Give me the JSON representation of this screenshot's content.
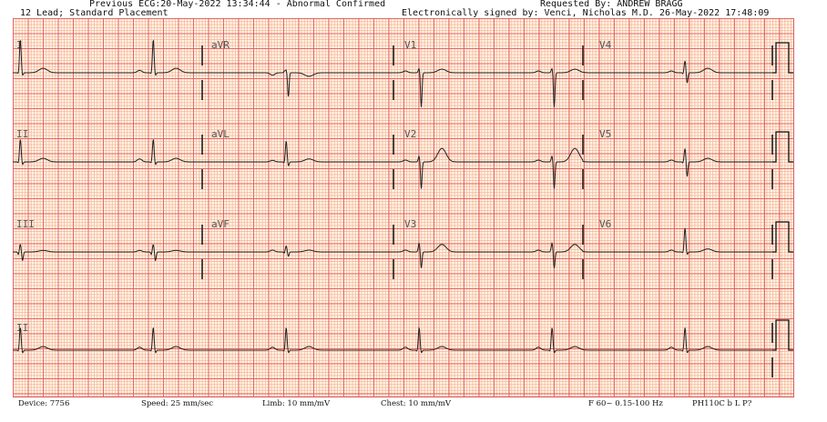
{
  "header": {
    "previous": "Previous ECG:20-May-2022 13:34:44 - Abnormal Confirmed",
    "requested": "Requested By: ANDREW  BRAGG",
    "lead_info": "12 Lead; Standard Placement",
    "signed": "Electronically signed by: Venci, Nicholas M.D. 26-May-2022 17:48:09"
  },
  "footer": {
    "device": "Device: 7756",
    "speed": "Speed: 25 mm/sec",
    "limb": "Limb: 10 mm/mV",
    "chest": "Chest: 10 mm/mV",
    "filter": "F 60~ 0.15-100 Hz",
    "model": "PH110C b L P?"
  },
  "colors": {
    "grid_major": "#de5a5a",
    "grid_minor": "#f6b28c",
    "trace": "#222222"
  },
  "chart_data": {
    "type": "line",
    "speed_mm_per_s": 25,
    "gain_mm_per_mv": 10,
    "duration_s": 10,
    "rr_interval_s": 1.75,
    "first_beat_s": 0.1,
    "rows": [
      [
        "I",
        "aVR",
        "V1",
        "V4"
      ],
      [
        "II",
        "aVL",
        "V2",
        "V5"
      ],
      [
        "III",
        "aVF",
        "V3",
        "V6"
      ],
      [
        "II"
      ]
    ],
    "leads": {
      "I": {
        "p": 0.08,
        "q": -0.05,
        "r": 1.1,
        "s": -0.1,
        "t": 0.15
      },
      "II": {
        "p": 0.1,
        "q": -0.05,
        "r": 0.75,
        "s": -0.1,
        "t": 0.12
      },
      "III": {
        "p": 0.05,
        "q": -0.1,
        "r": 0.25,
        "s": -0.3,
        "t": 0.05
      },
      "aVR": {
        "p": -0.08,
        "q": 0.05,
        "r": 0.1,
        "s": -0.8,
        "t": -0.12
      },
      "aVL": {
        "p": 0.05,
        "q": -0.05,
        "r": 0.7,
        "s": -0.15,
        "t": 0.1
      },
      "aVF": {
        "p": 0.06,
        "q": -0.05,
        "r": 0.2,
        "s": -0.15,
        "t": 0.06
      },
      "V1": {
        "p": 0.06,
        "q": 0,
        "r": 0.15,
        "s": -1.15,
        "t": 0.12
      },
      "V2": {
        "p": 0.06,
        "q": 0,
        "r": 0.2,
        "s": -0.9,
        "t": 0.45
      },
      "V3": {
        "p": 0.06,
        "q": 0,
        "r": 0.3,
        "s": -0.55,
        "t": 0.25
      },
      "V4": {
        "p": 0.06,
        "q": -0.05,
        "r": 0.4,
        "s": -0.35,
        "t": 0.15
      },
      "V5": {
        "p": 0.06,
        "q": -0.05,
        "r": 0.45,
        "s": -0.5,
        "t": 0.12
      },
      "V6": {
        "p": 0.06,
        "q": -0.05,
        "r": 0.8,
        "s": -0.1,
        "t": 0.1
      }
    },
    "calibration_mv": 1
  }
}
